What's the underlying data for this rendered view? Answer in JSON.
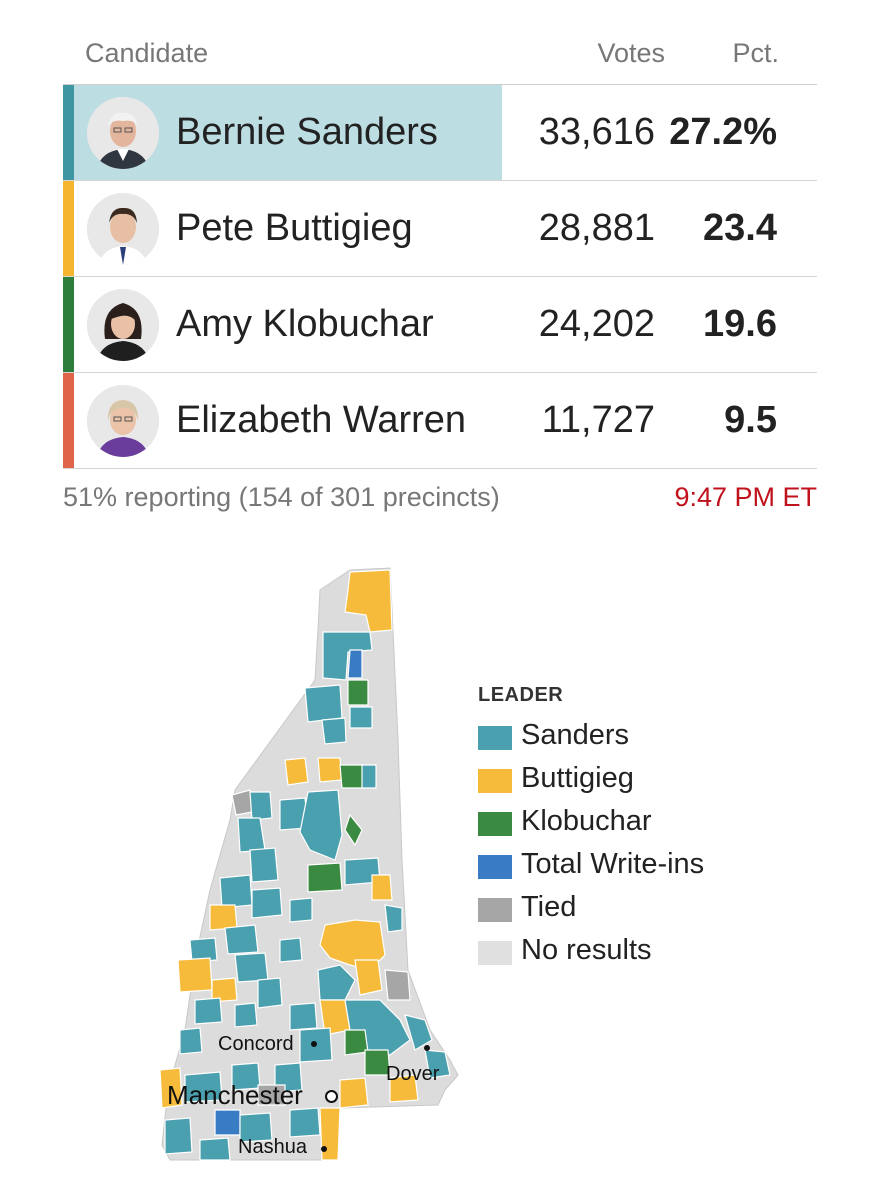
{
  "header": {
    "candidate": "Candidate",
    "votes": "Votes",
    "pct": "Pct."
  },
  "candidates": [
    {
      "name": "Bernie Sanders",
      "votes": "33,616",
      "pct": "27.2%",
      "color": "#3e96a3",
      "leading": true
    },
    {
      "name": "Pete Buttigieg",
      "votes": "28,881",
      "pct": "23.4",
      "color": "#f5b52e",
      "leading": false
    },
    {
      "name": "Amy Klobuchar",
      "votes": "24,202",
      "pct": "19.6",
      "color": "#2f7d3c",
      "leading": false
    },
    {
      "name": "Elizabeth Warren",
      "votes": "11,727",
      "pct": "9.5",
      "color": "#e06449",
      "leading": false
    }
  ],
  "footer": {
    "reporting": "51% reporting (154 of 301 precincts)",
    "time": "9:47 PM ET"
  },
  "legend": {
    "title": "LEADER",
    "items": [
      {
        "label": "Sanders",
        "color": "#4aa0ae"
      },
      {
        "label": "Buttigieg",
        "color": "#f7bb3b"
      },
      {
        "label": "Klobuchar",
        "color": "#3a8a41"
      },
      {
        "label": "Total Write-ins",
        "color": "#3a7cc4"
      },
      {
        "label": "Tied",
        "color": "#a6a6a6"
      },
      {
        "label": "No results",
        "color": "#e0e0e0"
      }
    ]
  },
  "map": {
    "cities": [
      "Concord",
      "Manchester",
      "Dover",
      "Nashua"
    ]
  }
}
